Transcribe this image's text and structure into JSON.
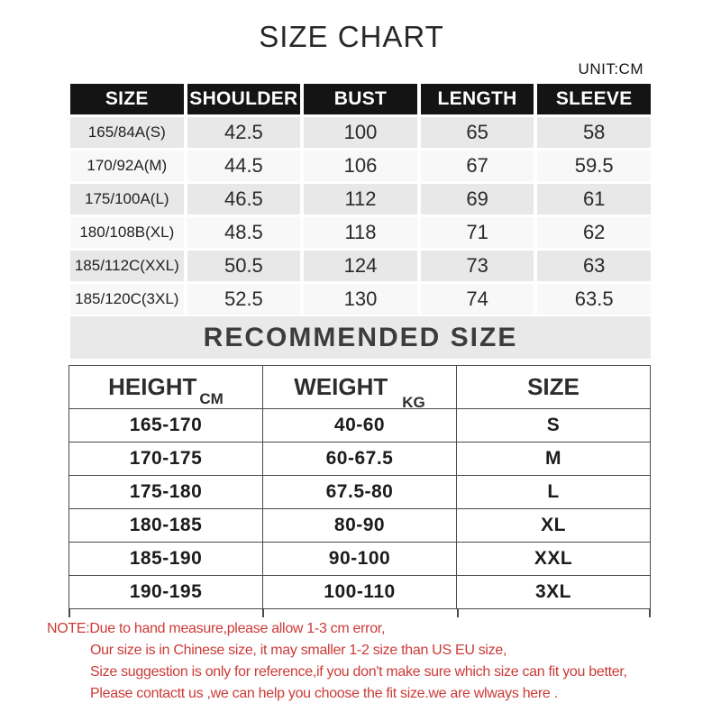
{
  "title": "SIZE CHART",
  "unit_label": "UNIT:CM",
  "colors": {
    "header_black": "#141414",
    "row_gray": "#e8e8e8",
    "row_light": "#f8f8f8",
    "band_gray": "#e9e9e9",
    "table_border": "#4a4a4a",
    "note_red": "#cc3a37"
  },
  "size_table": {
    "columns": [
      "SIZE",
      "SHOULDER",
      "BUST",
      "LENGTH",
      "SLEEVE"
    ],
    "rows": [
      [
        "165/84A(S)",
        "42.5",
        "100",
        "65",
        "58"
      ],
      [
        "170/92A(M)",
        "44.5",
        "106",
        "67",
        "59.5"
      ],
      [
        "175/100A(L)",
        "46.5",
        "112",
        "69",
        "61"
      ],
      [
        "180/108B(XL)",
        "48.5",
        "118",
        "71",
        "62"
      ],
      [
        "185/112C(XXL)",
        "50.5",
        "124",
        "73",
        "63"
      ],
      [
        "185/120C(3XL)",
        "52.5",
        "130",
        "74",
        "63.5"
      ]
    ]
  },
  "recommended": {
    "title": "RECOMMENDED SIZE",
    "columns": [
      {
        "label": "HEIGHT",
        "unit": "CM"
      },
      {
        "label": "WEIGHT",
        "unit": "KG"
      },
      {
        "label": "SIZE",
        "unit": ""
      }
    ],
    "rows": [
      [
        "165-170",
        "40-60",
        "S"
      ],
      [
        "170-175",
        "60-67.5",
        "M"
      ],
      [
        "175-180",
        "67.5-80",
        "L"
      ],
      [
        "180-185",
        "80-90",
        "XL"
      ],
      [
        "185-190",
        "90-100",
        "XXL"
      ],
      [
        "190-195",
        "100-110",
        "3XL"
      ]
    ]
  },
  "notes": {
    "lines": [
      "NOTE:Due to hand measure,please allow 1-3 cm error,",
      "Our size is in Chinese size, it may smaller 1-2 size than US EU size,",
      "Size suggestion is only for reference,if you don't make sure which size can fit you better,",
      "Please contactt us ,we can help you choose the fit size.we are wlways here ."
    ]
  }
}
